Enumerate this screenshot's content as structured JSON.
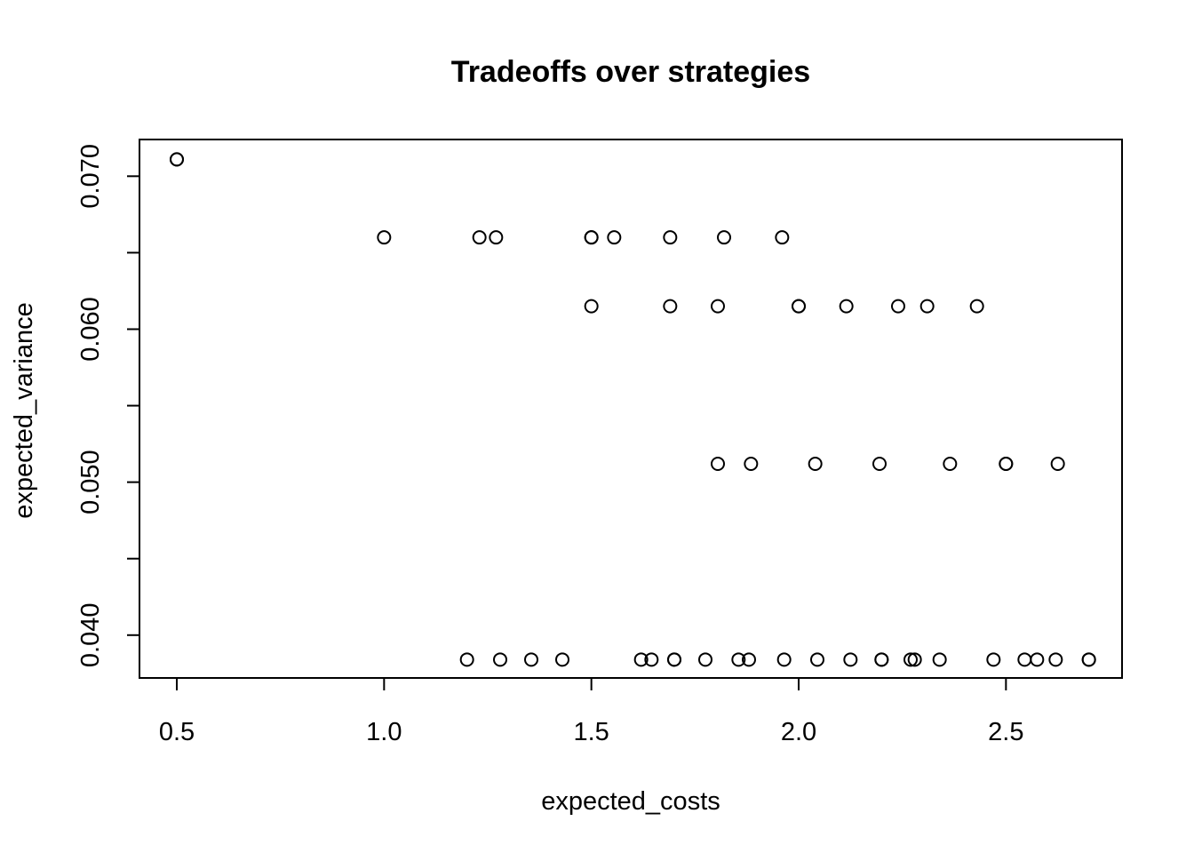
{
  "chart_data": {
    "type": "scatter",
    "title": "Tradeoffs over strategies",
    "xlabel": "expected_costs",
    "ylabel": "expected_variance",
    "xlim": [
      0.41,
      2.78
    ],
    "ylim": [
      0.0372,
      0.0724
    ],
    "xticks": [
      0.5,
      1.0,
      1.5,
      2.0,
      2.5
    ],
    "xtick_labels": [
      "0.5",
      "1.0",
      "1.5",
      "2.0",
      "2.5"
    ],
    "yticks": [
      0.04,
      0.045,
      0.05,
      0.055,
      0.06,
      0.065,
      0.07
    ],
    "ytick_labels": [
      "0.040",
      "",
      "0.050",
      "",
      "0.060",
      "",
      "0.070"
    ],
    "grid": false,
    "legend": "none",
    "points": [
      [
        0.5,
        0.0711
      ],
      [
        0.5,
        0.0711
      ],
      [
        1.0,
        0.066
      ],
      [
        1.23,
        0.066
      ],
      [
        1.27,
        0.066
      ],
      [
        1.5,
        0.066
      ],
      [
        1.5,
        0.066
      ],
      [
        1.555,
        0.066
      ],
      [
        1.69,
        0.066
      ],
      [
        1.82,
        0.066
      ],
      [
        1.96,
        0.066
      ],
      [
        1.5,
        0.0615
      ],
      [
        1.69,
        0.0615
      ],
      [
        1.805,
        0.0615
      ],
      [
        2.0,
        0.0615
      ],
      [
        2.0,
        0.0615
      ],
      [
        2.115,
        0.0615
      ],
      [
        2.24,
        0.0615
      ],
      [
        2.31,
        0.0615
      ],
      [
        2.43,
        0.0615
      ],
      [
        1.805,
        0.0512
      ],
      [
        1.885,
        0.0512
      ],
      [
        2.04,
        0.0512
      ],
      [
        2.195,
        0.0512
      ],
      [
        2.365,
        0.0512
      ],
      [
        2.5,
        0.0512
      ],
      [
        2.5,
        0.0512
      ],
      [
        2.625,
        0.0512
      ],
      [
        1.2,
        0.0384
      ],
      [
        1.28,
        0.0384
      ],
      [
        1.355,
        0.0384
      ],
      [
        1.43,
        0.0384
      ],
      [
        1.62,
        0.0384
      ],
      [
        1.645,
        0.0384
      ],
      [
        1.7,
        0.0384
      ],
      [
        1.7,
        0.0384
      ],
      [
        1.775,
        0.0384
      ],
      [
        1.855,
        0.0384
      ],
      [
        1.88,
        0.0384
      ],
      [
        1.965,
        0.0384
      ],
      [
        2.045,
        0.0384
      ],
      [
        2.125,
        0.0384
      ],
      [
        2.2,
        0.0384
      ],
      [
        2.2,
        0.0384
      ],
      [
        2.27,
        0.0384
      ],
      [
        2.28,
        0.0384
      ],
      [
        2.34,
        0.0384
      ],
      [
        2.47,
        0.0384
      ],
      [
        2.545,
        0.0384
      ],
      [
        2.575,
        0.0384
      ],
      [
        2.62,
        0.0384
      ],
      [
        2.7,
        0.0384
      ],
      [
        2.7,
        0.0384
      ]
    ]
  }
}
